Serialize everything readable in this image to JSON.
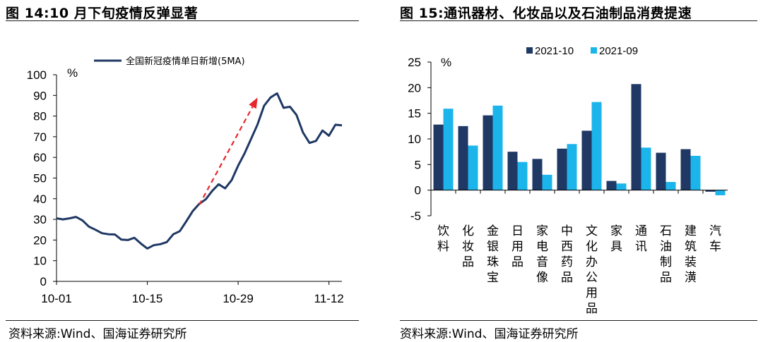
{
  "left_panel": {
    "title": "图 14:10 月下旬疫情反弹显著",
    "source": "资料来源:Wind、国海证券研究所"
  },
  "right_panel": {
    "title": "图 15:通讯器材、化妆品以及石油制品消费提速",
    "source": "资料来源:Wind、国海证券研究所"
  },
  "chart_data": [
    {
      "type": "line",
      "title": "",
      "unit_label": "%",
      "legend": [
        "全国新冠疫情单日新增(5MA)"
      ],
      "ylim": [
        0,
        100
      ],
      "yticks": [
        0,
        10,
        20,
        30,
        40,
        50,
        60,
        70,
        80,
        90,
        100
      ],
      "x_tick_labels": [
        "10-01",
        "10-15",
        "10-29",
        "11-12"
      ],
      "x_tick_positions": [
        0,
        14,
        28,
        42
      ],
      "series": [
        {
          "name": "全国新冠疫情单日新增(5MA)",
          "color": "#1f3864",
          "x": [
            0,
            1,
            2,
            3,
            4,
            5,
            6,
            7,
            8,
            9,
            10,
            11,
            12,
            13,
            14,
            15,
            16,
            17,
            18,
            19,
            20,
            21,
            22,
            23,
            24,
            25,
            26,
            27,
            28,
            29,
            30,
            31,
            32,
            33,
            34,
            35,
            36,
            37,
            38,
            39,
            40,
            41,
            42,
            43,
            44
          ],
          "values": [
            30.5,
            30,
            30.5,
            31.2,
            29.5,
            26.5,
            25,
            23.3,
            22.8,
            22.7,
            20.2,
            20,
            21.1,
            18.3,
            15.9,
            17.5,
            18,
            19,
            22.8,
            24.3,
            29,
            34,
            37.5,
            39.7,
            43.8,
            47,
            45,
            49,
            56,
            62,
            69,
            76,
            85,
            89,
            91,
            84,
            84.5,
            80.5,
            72,
            67,
            68,
            73,
            70.5,
            75.8,
            75.5
          ]
        }
      ],
      "annotation": {
        "type": "arrow",
        "color": "#e8272c",
        "from_x": 22,
        "from_y": 37,
        "to_x": 31,
        "to_y": 89
      }
    },
    {
      "type": "bar",
      "title": "",
      "unit_label": "%",
      "ylim": [
        -5,
        25
      ],
      "yticks": [
        -5,
        0,
        5,
        10,
        15,
        20,
        25
      ],
      "categories": [
        "饮料",
        "化妆品",
        "金银珠宝",
        "日用品",
        "家电音像",
        "中西药品",
        "文化办公用品",
        "家具",
        "通讯",
        "石油制品",
        "建筑装潢",
        "汽车"
      ],
      "series": [
        {
          "name": "2021-10",
          "color": "#1f3864",
          "values": [
            12.8,
            12.5,
            14.6,
            7.5,
            6.1,
            8.1,
            11.6,
            1.8,
            20.7,
            7.3,
            8.0,
            -0.3
          ]
        },
        {
          "name": "2021-09",
          "color": "#1cb5eb",
          "values": [
            15.9,
            8.7,
            16.5,
            5.5,
            3.0,
            9.0,
            17.2,
            1.3,
            8.3,
            1.6,
            6.7,
            -1.0
          ]
        }
      ]
    }
  ]
}
